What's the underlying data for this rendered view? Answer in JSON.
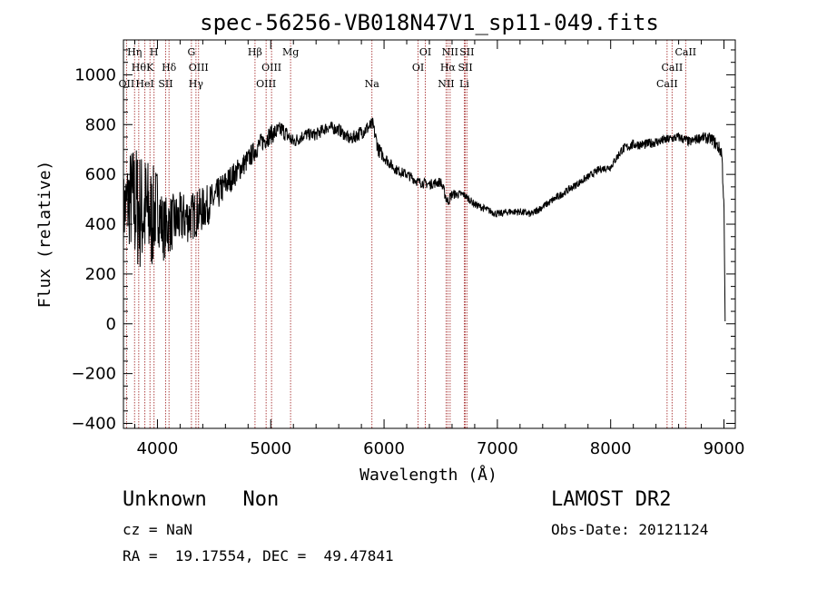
{
  "chart_data": {
    "type": "line",
    "title": "spec-56256-VB018N47V1_sp11-049.fits",
    "xlabel": "Wavelength (Å)",
    "ylabel": "Flux (relative)",
    "xlim": [
      3700,
      9100
    ],
    "ylim": [
      -420,
      1140
    ],
    "x_ticks": [
      4000,
      5000,
      6000,
      7000,
      8000,
      9000
    ],
    "y_ticks": [
      -400,
      -200,
      0,
      200,
      400,
      600,
      800,
      1000
    ],
    "x_tick_labels": [
      "4000",
      "5000",
      "6000",
      "7000",
      "8000",
      "9000"
    ],
    "y_tick_labels": [
      "−400",
      "−200",
      "0",
      "200",
      "400",
      "600",
      "800",
      "1000"
    ],
    "grid": false,
    "line_color": "#000000",
    "marker_line_color": "#a83232",
    "spectrum_anchors": {
      "x": [
        3700,
        3750,
        3800,
        3850,
        3900,
        3950,
        4000,
        4050,
        4100,
        4200,
        4300,
        4400,
        4500,
        4600,
        4700,
        4800,
        4900,
        5000,
        5100,
        5200,
        5300,
        5400,
        5500,
        5600,
        5700,
        5800,
        5900,
        5950,
        6000,
        6100,
        6200,
        6300,
        6400,
        6500,
        6560,
        6600,
        6700,
        6800,
        6900,
        7000,
        7100,
        7200,
        7300,
        7400,
        7500,
        7600,
        7700,
        7800,
        7900,
        8000,
        8100,
        8200,
        8300,
        8400,
        8500,
        8600,
        8700,
        8800,
        8900,
        8980,
        9000,
        9010
      ],
      "y": [
        450,
        500,
        480,
        450,
        450,
        420,
        480,
        380,
        400,
        420,
        430,
        460,
        500,
        560,
        610,
        660,
        720,
        760,
        780,
        730,
        760,
        760,
        790,
        780,
        740,
        770,
        800,
        700,
        670,
        620,
        600,
        570,
        560,
        570,
        490,
        520,
        520,
        480,
        460,
        440,
        450,
        450,
        440,
        470,
        500,
        530,
        560,
        590,
        620,
        630,
        700,
        720,
        720,
        730,
        740,
        750,
        730,
        750,
        740,
        690,
        480,
        10
      ],
      "noise_amplitude": [
        150,
        200,
        260,
        250,
        240,
        220,
        150,
        130,
        120,
        110,
        100,
        90,
        70,
        60,
        50,
        45,
        40,
        40,
        35,
        30,
        25,
        25,
        25,
        25,
        25,
        30,
        30,
        30,
        25,
        20,
        20,
        20,
        20,
        20,
        25,
        20,
        15,
        15,
        15,
        15,
        15,
        15,
        15,
        15,
        15,
        15,
        15,
        15,
        15,
        15,
        20,
        20,
        20,
        20,
        20,
        20,
        20,
        20,
        25,
        30,
        40,
        0
      ]
    },
    "line_markers": [
      {
        "wl": 3727,
        "label": "OII",
        "row": 3
      },
      {
        "wl": 3798,
        "label": "Hη",
        "row": 1
      },
      {
        "wl": 3835,
        "label": "Hθ",
        "row": 2
      },
      {
        "wl": 3889,
        "label": "HeI",
        "row": 3
      },
      {
        "wl": 3934,
        "label": "K",
        "row": 2
      },
      {
        "wl": 3970,
        "label": "H",
        "row": 1
      },
      {
        "wl": 4072,
        "label": "SII",
        "row": 3
      },
      {
        "wl": 4102,
        "label": "Hδ",
        "row": 2
      },
      {
        "wl": 4300,
        "label": "G",
        "row": 1
      },
      {
        "wl": 4340,
        "label": "Hγ",
        "row": 3
      },
      {
        "wl": 4363,
        "label": "OIII",
        "row": 2
      },
      {
        "wl": 4861,
        "label": "Hβ",
        "row": 1
      },
      {
        "wl": 4959,
        "label": "OIII",
        "row": 3
      },
      {
        "wl": 5007,
        "label": "OIII",
        "row": 2
      },
      {
        "wl": 5175,
        "label": "Mg",
        "row": 1
      },
      {
        "wl": 5893,
        "label": "Na",
        "row": 3
      },
      {
        "wl": 6300,
        "label": "OI",
        "row": 2
      },
      {
        "wl": 6364,
        "label": "OI",
        "row": 1
      },
      {
        "wl": 6548,
        "label": "NII",
        "row": 3
      },
      {
        "wl": 6563,
        "label": "Hα",
        "row": 2
      },
      {
        "wl": 6583,
        "label": "NII",
        "row": 1
      },
      {
        "wl": 6708,
        "label": "Li",
        "row": 3
      },
      {
        "wl": 6717,
        "label": "SII",
        "row": 2
      },
      {
        "wl": 6731,
        "label": "SII",
        "row": 1
      },
      {
        "wl": 8498,
        "label": "CaII",
        "row": 3
      },
      {
        "wl": 8542,
        "label": "CaII",
        "row": 2
      },
      {
        "wl": 8662,
        "label": "CaII",
        "row": 1
      }
    ]
  },
  "info": {
    "class_text": "Unknown   Non",
    "cz_text": "cz = NaN",
    "radec_text": "RA =  19.17554, DEC =  49.47841",
    "survey_text": "LAMOST DR2",
    "obsdate_text": "Obs-Date: 20121124"
  }
}
